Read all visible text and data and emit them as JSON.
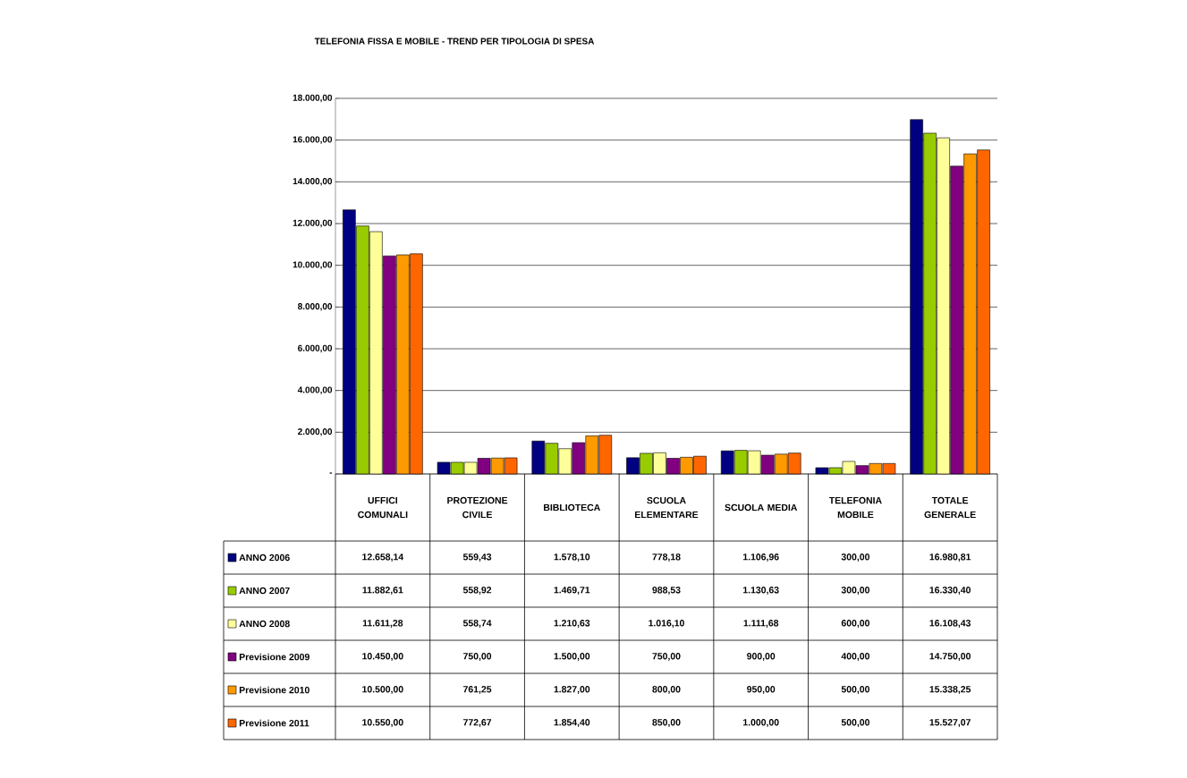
{
  "chart_data": {
    "type": "bar",
    "title": "TELEFONIA FISSA E MOBILE - TREND PER TIPOLOGIA DI SPESA",
    "categories": [
      "UFFICI COMUNALI",
      "PROTEZIONE CIVILE",
      "BIBLIOTECA",
      "SCUOLA ELEMENTARE",
      "SCUOLA MEDIA",
      "TELEFONIA MOBILE",
      "TOTALE GENERALE"
    ],
    "series": [
      {
        "name": "ANNO 2006",
        "color": "#000080",
        "values": [
          12658.14,
          559.43,
          1578.1,
          778.18,
          1106.96,
          300.0,
          16980.81
        ],
        "value_labels": [
          "12.658,14",
          "559,43",
          "1.578,10",
          "778,18",
          "1.106,96",
          "300,00",
          "16.980,81"
        ]
      },
      {
        "name": "ANNO 2007",
        "color": "#99cc00",
        "values": [
          11882.61,
          558.92,
          1469.71,
          988.53,
          1130.63,
          300.0,
          16330.4
        ],
        "value_labels": [
          "11.882,61",
          "558,92",
          "1.469,71",
          "988,53",
          "1.130,63",
          "300,00",
          "16.330,40"
        ]
      },
      {
        "name": "ANNO 2008",
        "color": "#ffff99",
        "values": [
          11611.28,
          558.74,
          1210.63,
          1016.1,
          1111.68,
          600.0,
          16108.43
        ],
        "value_labels": [
          "11.611,28",
          "558,74",
          "1.210,63",
          "1.016,10",
          "1.111,68",
          "600,00",
          "16.108,43"
        ]
      },
      {
        "name": "Previsione 2009",
        "color": "#800080",
        "values": [
          10450.0,
          750.0,
          1500.0,
          750.0,
          900.0,
          400.0,
          14750.0
        ],
        "value_labels": [
          "10.450,00",
          "750,00",
          "1.500,00",
          "750,00",
          "900,00",
          "400,00",
          "14.750,00"
        ]
      },
      {
        "name": "Previsione 2010",
        "color": "#ff9900",
        "values": [
          10500.0,
          761.25,
          1827.0,
          800.0,
          950.0,
          500.0,
          15338.25
        ],
        "value_labels": [
          "10.500,00",
          "761,25",
          "1.827,00",
          "800,00",
          "950,00",
          "500,00",
          "15.338,25"
        ]
      },
      {
        "name": "Previsione 2011",
        "color": "#ff6600",
        "values": [
          10550.0,
          772.67,
          1854.4,
          850.0,
          1000.0,
          500.0,
          15527.07
        ],
        "value_labels": [
          "10.550,00",
          "772,67",
          "1.854,40",
          "850,00",
          "1.000,00",
          "500,00",
          "15.527,07"
        ]
      }
    ],
    "ylim": [
      0,
      18000
    ],
    "yticks": [
      {
        "value": 0,
        "label": "-"
      },
      {
        "value": 2000,
        "label": "2.000,00"
      },
      {
        "value": 4000,
        "label": "4.000,00"
      },
      {
        "value": 6000,
        "label": "6.000,00"
      },
      {
        "value": 8000,
        "label": "8.000,00"
      },
      {
        "value": 10000,
        "label": "10.000,00"
      },
      {
        "value": 12000,
        "label": "12.000,00"
      },
      {
        "value": 14000,
        "label": "14.000,00"
      },
      {
        "value": 16000,
        "label": "16.000,00"
      },
      {
        "value": 18000,
        "label": "18.000,00"
      }
    ],
    "grid": "y",
    "legend": "bottom left"
  }
}
